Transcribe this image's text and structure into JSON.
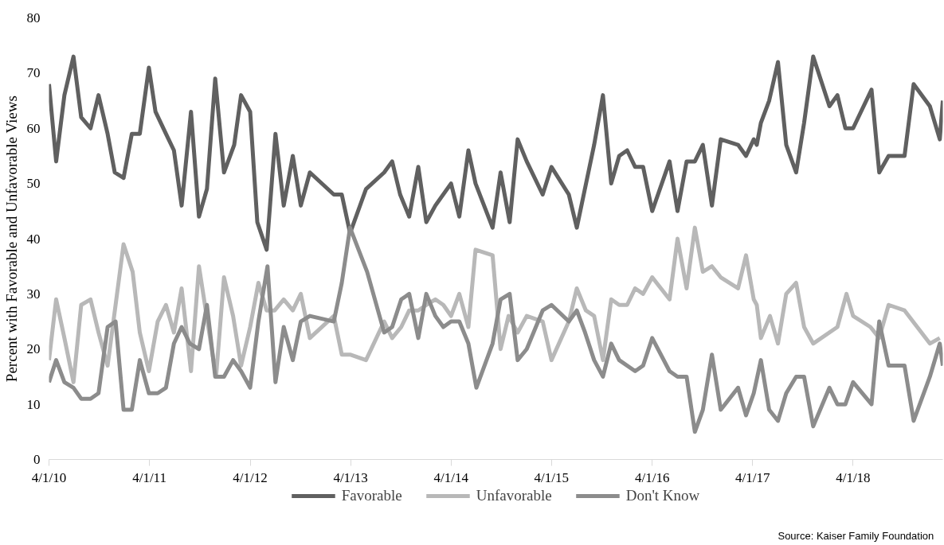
{
  "chart_data": {
    "type": "line",
    "ylabel": "Percent with Favorable and Unfavorable Views",
    "xlim": [
      "2010-04-01",
      "2019-02-21"
    ],
    "xticks": [
      {
        "value": "2010-04-01",
        "label": "4/1/10"
      },
      {
        "value": "2011-04-01",
        "label": "4/1/11"
      },
      {
        "value": "2012-04-01",
        "label": "4/1/12"
      },
      {
        "value": "2013-04-01",
        "label": "4/1/13"
      },
      {
        "value": "2014-04-01",
        "label": "4/1/14"
      },
      {
        "value": "2015-04-01",
        "label": "4/1/15"
      },
      {
        "value": "2016-04-01",
        "label": "4/1/16"
      },
      {
        "value": "2017-04-01",
        "label": "4/1/17"
      },
      {
        "value": "2018-04-01",
        "label": "4/1/18"
      }
    ],
    "ylim": [
      0,
      80
    ],
    "yticks": [
      0,
      10,
      20,
      30,
      40,
      50,
      60,
      70,
      80
    ],
    "grid": false,
    "legend": "bottom",
    "line_style": "solid",
    "annotations": [
      "Source: Kaiser Family Foundation"
    ],
    "series": [
      {
        "name": "Favorable",
        "color": "#606060",
        "x": [
          "2010-04-01",
          "2010-04-27",
          "2010-05-27",
          "2010-06-29",
          "2010-07-27",
          "2010-08-30",
          "2010-09-28",
          "2010-10-31",
          "2010-11-26",
          "2010-12-28",
          "2011-01-27",
          "2011-02-25",
          "2011-03-30",
          "2011-04-23",
          "2011-05-31",
          "2011-06-29",
          "2011-07-27",
          "2011-08-30",
          "2011-09-28",
          "2011-10-27",
          "2011-11-26",
          "2011-12-28",
          "2012-02-03",
          "2012-02-28",
          "2012-04-01",
          "2012-04-27",
          "2012-05-31",
          "2012-07-02",
          "2012-08-01",
          "2012-09-03",
          "2012-10-02",
          "2012-11-04",
          "2013-01-30",
          "2013-02-28",
          "2013-03-30",
          "2013-05-27",
          "2013-08-01",
          "2013-08-30",
          "2013-09-28",
          "2013-10-31",
          "2013-12-03",
          "2014-01-01",
          "2014-02-03",
          "2014-04-01",
          "2014-05-01",
          "2014-06-03",
          "2014-06-29",
          "2014-08-30",
          "2014-09-28",
          "2014-10-31",
          "2014-11-29",
          "2015-01-01",
          "2015-02-28",
          "2015-04-01",
          "2015-06-03",
          "2015-07-02",
          "2015-09-03",
          "2015-10-05",
          "2015-11-04",
          "2015-12-03",
          "2016-01-01",
          "2016-01-30",
          "2016-02-28",
          "2016-04-01",
          "2016-06-03",
          "2016-07-02",
          "2016-08-04",
          "2016-09-03",
          "2016-10-02",
          "2016-11-04",
          "2016-12-06",
          "2017-02-07",
          "2017-03-08",
          "2017-04-05",
          "2017-04-16",
          "2017-05-01",
          "2017-05-31",
          "2017-07-02",
          "2017-08-01",
          "2017-09-06",
          "2017-10-05",
          "2017-11-07",
          "2018-01-05",
          "2018-02-03",
          "2018-03-04",
          "2018-04-01",
          "2018-06-07",
          "2018-07-05",
          "2018-08-08",
          "2018-10-05",
          "2018-11-07",
          "2019-01-05",
          "2019-02-10",
          "2019-02-21"
        ],
        "values": [
          68,
          54,
          66,
          73,
          62,
          60,
          66,
          59,
          52,
          51,
          59,
          59,
          71,
          63,
          59,
          56,
          46,
          63,
          44,
          49,
          69,
          52,
          57,
          66,
          63,
          43,
          38,
          59,
          46,
          55,
          46,
          52,
          48,
          48,
          41,
          49,
          52,
          54,
          48,
          44,
          53,
          43,
          46,
          50,
          44,
          56,
          50,
          42,
          52,
          43,
          58,
          54,
          48,
          53,
          48,
          42,
          57,
          66,
          50,
          55,
          56,
          53,
          53,
          45,
          54,
          45,
          54,
          54,
          57,
          46,
          58,
          57,
          55,
          58,
          57,
          61,
          65,
          72,
          57,
          52,
          61,
          73,
          64,
          66,
          60,
          60,
          67,
          52,
          55,
          55,
          68,
          64,
          58,
          65
        ]
      },
      {
        "name": "Unfavorable",
        "color": "#b8b8b8",
        "x": [
          "2010-04-01",
          "2010-04-27",
          "2010-05-27",
          "2010-06-29",
          "2010-07-27",
          "2010-08-30",
          "2010-09-28",
          "2010-10-31",
          "2010-12-28",
          "2011-01-30",
          "2011-02-25",
          "2011-03-30",
          "2011-05-01",
          "2011-05-31",
          "2011-06-29",
          "2011-07-27",
          "2011-08-30",
          "2011-09-28",
          "2011-11-29",
          "2011-12-28",
          "2012-01-30",
          "2012-02-28",
          "2012-04-01",
          "2012-05-01",
          "2012-05-31",
          "2012-06-29",
          "2012-08-01",
          "2012-09-03",
          "2012-10-02",
          "2012-11-04",
          "2013-01-30",
          "2013-02-28",
          "2013-03-30",
          "2013-05-27",
          "2013-08-01",
          "2013-08-30",
          "2013-10-02",
          "2013-10-31",
          "2013-12-03",
          "2014-01-01",
          "2014-02-03",
          "2014-03-04",
          "2014-04-01",
          "2014-05-01",
          "2014-06-03",
          "2014-06-29",
          "2014-08-30",
          "2014-09-28",
          "2014-10-27",
          "2014-11-29",
          "2015-01-01",
          "2015-02-28",
          "2015-04-01",
          "2015-06-03",
          "2015-07-02",
          "2015-08-04",
          "2015-09-03",
          "2015-10-05",
          "2015-11-04",
          "2015-12-03",
          "2016-01-01",
          "2016-01-30",
          "2016-02-28",
          "2016-04-01",
          "2016-06-03",
          "2016-07-02",
          "2016-08-04",
          "2016-09-03",
          "2016-10-02",
          "2016-11-04",
          "2016-12-06",
          "2017-02-07",
          "2017-03-08",
          "2017-04-05",
          "2017-04-16",
          "2017-05-01",
          "2017-06-03",
          "2017-07-02",
          "2017-08-01",
          "2017-09-06",
          "2017-10-05",
          "2017-11-07",
          "2018-02-03",
          "2018-03-08",
          "2018-04-01",
          "2018-06-03",
          "2018-07-05",
          "2018-08-08",
          "2018-10-05",
          "2019-01-05",
          "2019-02-10"
        ],
        "values": [
          18,
          29,
          22,
          14,
          28,
          29,
          23,
          17,
          39,
          34,
          23,
          16,
          25,
          28,
          23,
          31,
          16,
          35,
          15,
          33,
          26,
          17,
          24,
          32,
          27,
          27,
          29,
          27,
          30,
          22,
          26,
          19,
          19,
          18,
          25,
          22,
          24,
          27,
          27,
          28,
          29,
          28,
          26,
          30,
          24,
          38,
          37,
          20,
          26,
          23,
          26,
          25,
          18,
          25,
          31,
          27,
          26,
          18,
          29,
          28,
          28,
          31,
          30,
          33,
          29,
          40,
          31,
          42,
          34,
          35,
          33,
          31,
          37,
          29,
          28,
          22,
          26,
          21,
          30,
          32,
          24,
          21,
          24,
          30,
          26,
          24,
          22,
          28,
          27,
          21,
          22
        ]
      },
      {
        "name": "Don't Know",
        "color": "#8c8c8c",
        "x": [
          "2010-04-01",
          "2010-04-27",
          "2010-05-27",
          "2010-06-29",
          "2010-07-27",
          "2010-08-30",
          "2010-09-28",
          "2010-10-31",
          "2010-11-29",
          "2010-12-28",
          "2011-01-27",
          "2011-02-25",
          "2011-03-30",
          "2011-05-01",
          "2011-05-31",
          "2011-06-29",
          "2011-07-27",
          "2011-08-26",
          "2011-09-28",
          "2011-10-27",
          "2011-11-26",
          "2011-12-28",
          "2012-01-30",
          "2012-02-28",
          "2012-04-01",
          "2012-05-01",
          "2012-06-03",
          "2012-07-02",
          "2012-08-01",
          "2012-09-03",
          "2012-10-02",
          "2012-11-04",
          "2013-01-30",
          "2013-02-28",
          "2013-03-30",
          "2013-05-31",
          "2013-08-01",
          "2013-08-30",
          "2013-10-02",
          "2013-10-31",
          "2013-12-03",
          "2014-01-01",
          "2014-02-03",
          "2014-03-04",
          "2014-04-01",
          "2014-05-01",
          "2014-06-03",
          "2014-07-02",
          "2014-08-30",
          "2014-09-28",
          "2014-10-31",
          "2014-11-29",
          "2015-01-01",
          "2015-02-28",
          "2015-04-01",
          "2015-06-03",
          "2015-07-02",
          "2015-08-01",
          "2015-09-03",
          "2015-10-05",
          "2015-11-04",
          "2015-12-03",
          "2016-01-30",
          "2016-02-28",
          "2016-04-01",
          "2016-06-03",
          "2016-07-02",
          "2016-08-04",
          "2016-09-03",
          "2016-10-02",
          "2016-11-04",
          "2016-12-06",
          "2017-02-07",
          "2017-03-08",
          "2017-04-05",
          "2017-05-01",
          "2017-05-31",
          "2017-07-02",
          "2017-08-01",
          "2017-09-06",
          "2017-10-05",
          "2017-11-07",
          "2018-01-05",
          "2018-02-03",
          "2018-03-04",
          "2018-04-01",
          "2018-06-07",
          "2018-07-05",
          "2018-08-08",
          "2018-10-05",
          "2018-11-07",
          "2019-01-05",
          "2019-02-10",
          "2019-02-21"
        ],
        "values": [
          14,
          18,
          14,
          13,
          11,
          11,
          12,
          24,
          25,
          9,
          9,
          18,
          12,
          12,
          13,
          21,
          24,
          21,
          20,
          28,
          15,
          15,
          18,
          16,
          13,
          25,
          35,
          14,
          24,
          18,
          25,
          26,
          25,
          32,
          42,
          34,
          23,
          24,
          29,
          30,
          22,
          30,
          26,
          24,
          25,
          25,
          21,
          13,
          21,
          29,
          30,
          18,
          20,
          27,
          28,
          25,
          27,
          23,
          18,
          15,
          21,
          18,
          16,
          17,
          22,
          16,
          15,
          15,
          5,
          9,
          19,
          9,
          13,
          8,
          12,
          18,
          9,
          7,
          12,
          15,
          15,
          6,
          13,
          10,
          10,
          14,
          10,
          25,
          17,
          17,
          7,
          15,
          21,
          17
        ]
      }
    ]
  }
}
